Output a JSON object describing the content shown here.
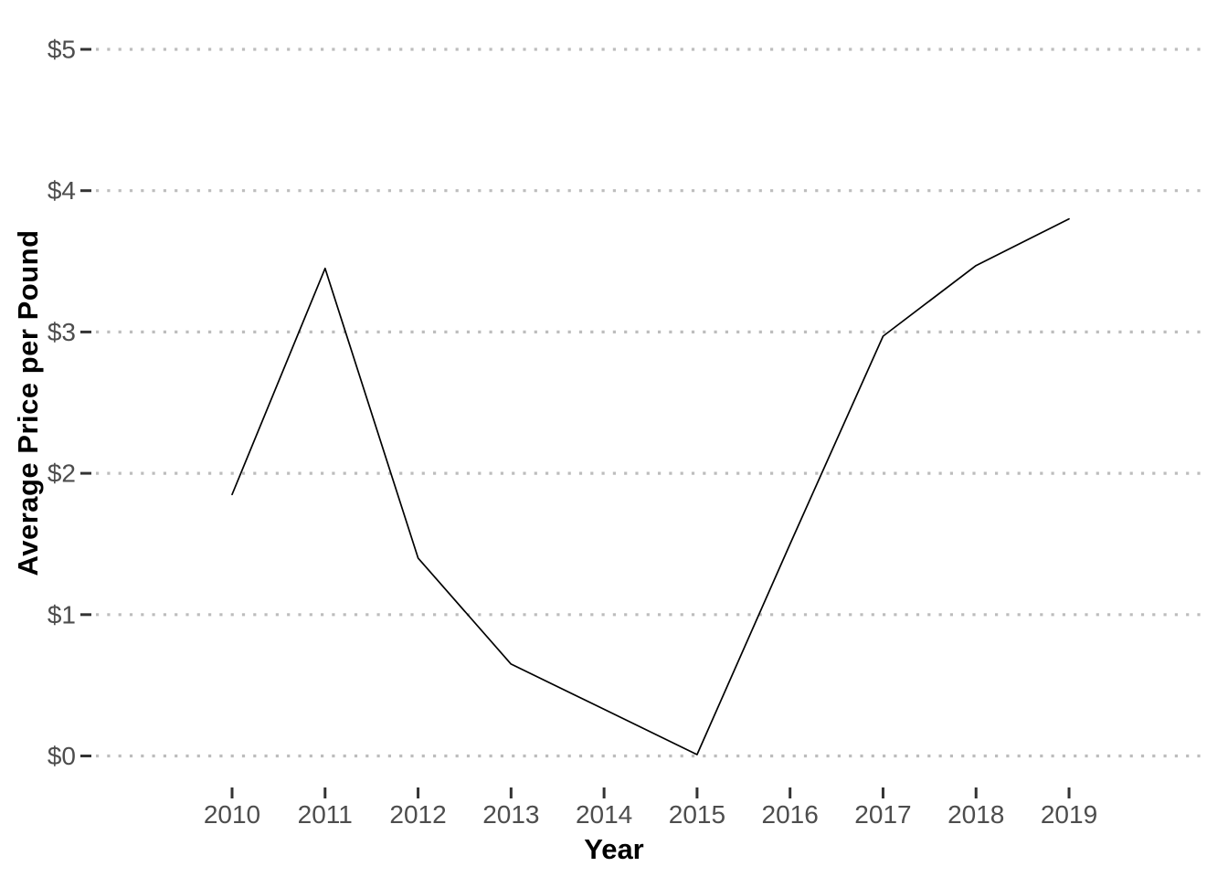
{
  "chart_data": {
    "type": "line",
    "title": "",
    "xlabel": "Year",
    "ylabel": "Average Price per Pound",
    "x": [
      2010,
      2011,
      2012,
      2013,
      2014,
      2015,
      2016,
      2017,
      2018,
      2019
    ],
    "series": [
      {
        "name": "average-price-per-pound",
        "values": [
          1.85,
          3.45,
          1.4,
          0.65,
          0.33,
          0.01,
          1.5,
          2.97,
          3.47,
          3.8
        ]
      }
    ],
    "ylim": [
      0,
      5
    ],
    "yticks": [
      0,
      1,
      2,
      3,
      4,
      5
    ],
    "ytick_labels": [
      "$0",
      "$1",
      "$2",
      "$3",
      "$4",
      "$5"
    ],
    "xtick_labels": [
      "2010",
      "2011",
      "2012",
      "2013",
      "2014",
      "2015",
      "2016",
      "2017",
      "2018",
      "2019"
    ],
    "grid": "horizontal-major-dotted",
    "legend": "none",
    "line_color": "#000000",
    "colors": {
      "background": "#ffffff",
      "gridline": "#bdbdbd",
      "tick_mark": "#333333",
      "tick_label": "#4d4d4d",
      "axis_title": "#000000"
    }
  }
}
